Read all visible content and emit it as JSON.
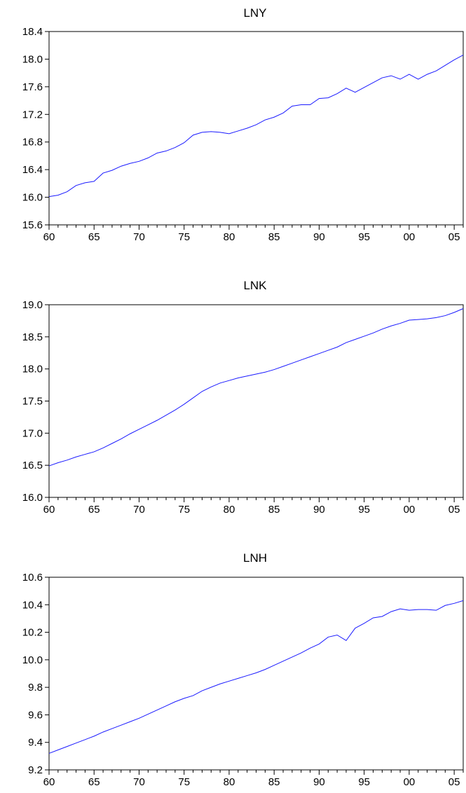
{
  "chart_data": [
    {
      "type": "line",
      "title": "LNY",
      "ylim": [
        15.6,
        18.4
      ],
      "yticks": [
        "15.6",
        "16.0",
        "16.4",
        "16.8",
        "17.2",
        "17.6",
        "18.0",
        "18.4"
      ],
      "xlim": [
        1960,
        2006
      ],
      "xticks": [
        "60",
        "65",
        "70",
        "75",
        "80",
        "85",
        "90",
        "95",
        "00",
        "05"
      ],
      "grid": false,
      "series": [
        {
          "color": "#1a1aff",
          "x": [
            1960,
            1961,
            1962,
            1963,
            1964,
            1965,
            1966,
            1967,
            1968,
            1969,
            1970,
            1971,
            1972,
            1973,
            1974,
            1975,
            1976,
            1977,
            1978,
            1979,
            1980,
            1981,
            1982,
            1983,
            1984,
            1985,
            1986,
            1987,
            1988,
            1989,
            1990,
            1991,
            1992,
            1993,
            1994,
            1995,
            1996,
            1997,
            1998,
            1999,
            2000,
            2001,
            2002,
            2003,
            2004,
            2005,
            2006
          ],
          "values": [
            16.01,
            16.03,
            16.08,
            16.17,
            16.21,
            16.23,
            16.35,
            16.39,
            16.45,
            16.49,
            16.52,
            16.57,
            16.64,
            16.67,
            16.72,
            16.79,
            16.9,
            16.94,
            16.95,
            16.94,
            16.92,
            16.96,
            17.0,
            17.05,
            17.12,
            17.16,
            17.22,
            17.32,
            17.34,
            17.34,
            17.43,
            17.44,
            17.5,
            17.58,
            17.52,
            17.59,
            17.66,
            17.73,
            17.76,
            17.71,
            17.78,
            17.71,
            17.78,
            17.83,
            17.91,
            17.99,
            18.06
          ]
        }
      ]
    },
    {
      "type": "line",
      "title": "LNK",
      "ylim": [
        16.0,
        19.0
      ],
      "yticks": [
        "16.0",
        "16.5",
        "17.0",
        "17.5",
        "18.0",
        "18.5",
        "19.0"
      ],
      "xlim": [
        1960,
        2006
      ],
      "xticks": [
        "60",
        "65",
        "70",
        "75",
        "80",
        "85",
        "90",
        "95",
        "00",
        "05"
      ],
      "grid": false,
      "series": [
        {
          "color": "#1a1aff",
          "x": [
            1960,
            1961,
            1962,
            1963,
            1964,
            1965,
            1966,
            1967,
            1968,
            1969,
            1970,
            1971,
            1972,
            1973,
            1974,
            1975,
            1976,
            1977,
            1978,
            1979,
            1980,
            1981,
            1982,
            1983,
            1984,
            1985,
            1986,
            1987,
            1988,
            1989,
            1990,
            1991,
            1992,
            1993,
            1994,
            1995,
            1996,
            1997,
            1998,
            1999,
            2000,
            2001,
            2002,
            2003,
            2004,
            2005,
            2006
          ],
          "values": [
            16.49,
            16.54,
            16.58,
            16.63,
            16.67,
            16.71,
            16.77,
            16.84,
            16.91,
            16.99,
            17.06,
            17.13,
            17.2,
            17.28,
            17.36,
            17.45,
            17.55,
            17.65,
            17.72,
            17.78,
            17.82,
            17.86,
            17.89,
            17.92,
            17.95,
            17.99,
            18.04,
            18.09,
            18.14,
            18.19,
            18.24,
            18.29,
            18.34,
            18.41,
            18.46,
            18.51,
            18.56,
            18.62,
            18.67,
            18.71,
            18.76,
            18.77,
            18.78,
            18.8,
            18.83,
            18.88,
            18.94
          ]
        }
      ]
    },
    {
      "type": "line",
      "title": "LNH",
      "ylim": [
        9.2,
        10.6
      ],
      "yticks": [
        "9.2",
        "9.4",
        "9.6",
        "9.8",
        "10.0",
        "10.2",
        "10.4",
        "10.6"
      ],
      "xlim": [
        1960,
        2006
      ],
      "xticks": [
        "60",
        "65",
        "70",
        "75",
        "80",
        "85",
        "90",
        "95",
        "00",
        "05"
      ],
      "grid": false,
      "series": [
        {
          "color": "#1a1aff",
          "x": [
            1960,
            1961,
            1962,
            1963,
            1964,
            1965,
            1966,
            1967,
            1968,
            1969,
            1970,
            1971,
            1972,
            1973,
            1974,
            1975,
            1976,
            1977,
            1978,
            1979,
            1980,
            1981,
            1982,
            1983,
            1984,
            1985,
            1986,
            1987,
            1988,
            1989,
            1990,
            1991,
            1992,
            1993,
            1994,
            1995,
            1996,
            1997,
            1998,
            1999,
            2000,
            2001,
            2002,
            2003,
            2004,
            2005,
            2006
          ],
          "values": [
            9.32,
            9.345,
            9.37,
            9.395,
            9.42,
            9.445,
            9.475,
            9.5,
            9.525,
            9.55,
            9.575,
            9.605,
            9.635,
            9.665,
            9.695,
            9.72,
            9.74,
            9.775,
            9.8,
            9.825,
            9.845,
            9.865,
            9.885,
            9.905,
            9.93,
            9.96,
            9.99,
            10.02,
            10.05,
            10.085,
            10.115,
            10.165,
            10.18,
            10.14,
            10.23,
            10.265,
            10.305,
            10.315,
            10.35,
            10.37,
            10.36,
            10.365,
            10.365,
            10.36,
            10.395,
            10.41,
            10.43
          ]
        }
      ]
    }
  ]
}
